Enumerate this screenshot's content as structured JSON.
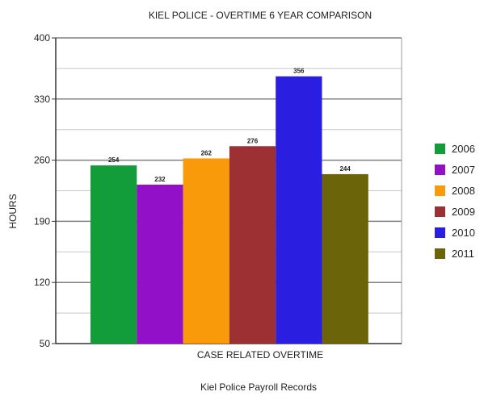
{
  "chart_data": {
    "type": "bar",
    "title": "KIEL POLICE - OVERTIME 6 YEAR COMPARISON",
    "xlabel": "CASE RELATED OVERTIME",
    "ylabel": "HOURS",
    "caption": "Kiel Police Payroll Records",
    "ylim": [
      50,
      400
    ],
    "yticks": [
      50,
      120,
      190,
      260,
      330,
      400
    ],
    "grid": true,
    "legend_position": "right",
    "categories": [
      "CASE RELATED OVERTIME"
    ],
    "series": [
      {
        "name": "2006",
        "values": [
          254
        ],
        "color": "#139c3a"
      },
      {
        "name": "2007",
        "values": [
          232
        ],
        "color": "#9210c8"
      },
      {
        "name": "2008",
        "values": [
          262
        ],
        "color": "#f99a0b"
      },
      {
        "name": "2009",
        "values": [
          276
        ],
        "color": "#9c3032"
      },
      {
        "name": "2010",
        "values": [
          356
        ],
        "color": "#2a1ee0"
      },
      {
        "name": "2011",
        "values": [
          244
        ],
        "color": "#6c6409"
      }
    ]
  }
}
